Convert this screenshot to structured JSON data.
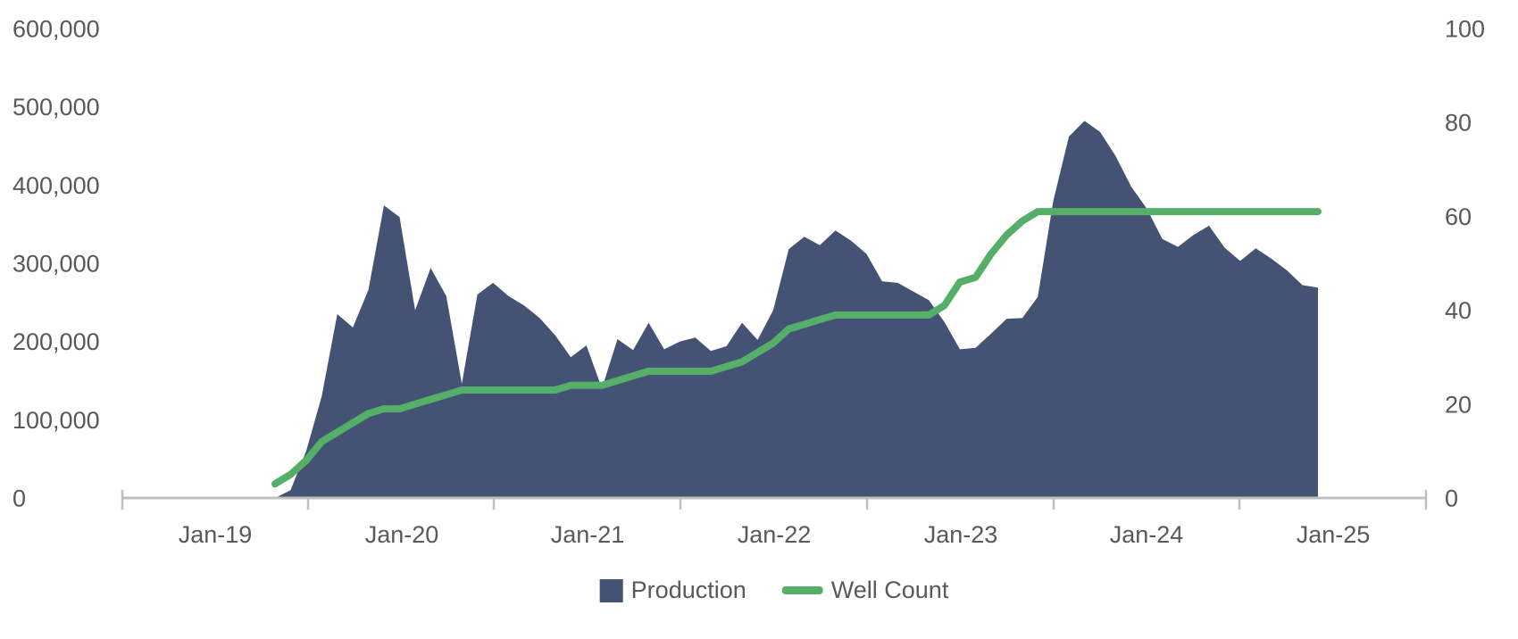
{
  "chart_data": {
    "type": "combo",
    "title": "",
    "grid": "off",
    "legend_position": "bottom",
    "categories": [
      "May-19",
      "Jun-19",
      "Jul-19",
      "Aug-19",
      "Sep-19",
      "Oct-19",
      "Nov-19",
      "Dec-19",
      "Jan-20",
      "Feb-20",
      "Mar-20",
      "Apr-20",
      "May-20",
      "Jun-20",
      "Jul-20",
      "Aug-20",
      "Sep-20",
      "Oct-20",
      "Nov-20",
      "Dec-20",
      "Jan-21",
      "Feb-21",
      "Mar-21",
      "Apr-21",
      "May-21",
      "Jun-21",
      "Jul-21",
      "Aug-21",
      "Sep-21",
      "Oct-21",
      "Nov-21",
      "Dec-21",
      "Jan-22",
      "Feb-22",
      "Mar-22",
      "Apr-22",
      "May-22",
      "Jun-22",
      "Jul-22",
      "Aug-22",
      "Sep-22",
      "Oct-22",
      "Nov-22",
      "Dec-22",
      "Jan-23",
      "Feb-23",
      "Mar-23",
      "Apr-23",
      "May-23",
      "Jun-23",
      "Jul-23",
      "Aug-23",
      "Sep-23",
      "Oct-23",
      "Nov-23",
      "Dec-23",
      "Jan-24",
      "Feb-24",
      "Mar-24",
      "Apr-24",
      "May-24",
      "Jun-24",
      "Jul-24",
      "Aug-24",
      "Sep-24",
      "Oct-24",
      "Nov-24",
      "Dec-24"
    ],
    "series": [
      {
        "name": "Production",
        "type": "area",
        "axis": "left",
        "color": "#445274",
        "values": [
          0,
          10000,
          60000,
          130000,
          235000,
          218000,
          266000,
          374000,
          359000,
          240000,
          294000,
          258000,
          146000,
          260000,
          275000,
          258000,
          246000,
          230000,
          208000,
          180000,
          195000,
          140000,
          203000,
          189000,
          224000,
          190000,
          200000,
          205000,
          188000,
          194000,
          224000,
          202000,
          240000,
          318000,
          334000,
          323000,
          342000,
          329000,
          312000,
          277000,
          275000,
          264000,
          253000,
          225000,
          190000,
          192000,
          210000,
          229000,
          230000,
          257000,
          380000,
          462000,
          482000,
          468000,
          437000,
          398000,
          370000,
          331000,
          321000,
          336000,
          348000,
          320000,
          303000,
          319000,
          306000,
          291000,
          272000,
          269000
        ]
      },
      {
        "name": "Well Count",
        "type": "line",
        "axis": "right",
        "color": "#55AF68",
        "values": [
          3,
          5,
          8,
          12,
          14,
          16,
          18,
          19,
          19,
          20,
          21,
          22,
          23,
          23,
          23,
          23,
          23,
          23,
          23,
          24,
          24,
          24,
          25,
          26,
          27,
          27,
          27,
          27,
          27,
          28,
          29,
          31,
          33,
          36,
          37,
          38,
          39,
          39,
          39,
          39,
          39,
          39,
          39,
          41,
          46,
          47,
          52,
          56,
          59,
          61,
          61,
          61,
          61,
          61,
          61,
          61,
          61,
          61,
          61,
          61,
          61,
          61,
          61,
          61,
          61,
          61,
          61,
          61
        ]
      }
    ],
    "x_axis": {
      "labels": [
        "Jan-19",
        "Jan-20",
        "Jan-21",
        "Jan-22",
        "Jan-23",
        "Jan-24",
        "Jan-25"
      ]
    },
    "y_axis_left": {
      "min": 0,
      "max": 600000,
      "tick_values": [
        0,
        100000,
        200000,
        300000,
        400000,
        500000,
        600000
      ],
      "tick_labels": [
        "0",
        "100,000",
        "200,000",
        "300,000",
        "400,000",
        "500,000",
        "600,000"
      ]
    },
    "y_axis_right": {
      "min": 0,
      "max": 100,
      "tick_values": [
        0,
        20,
        40,
        60,
        80,
        100
      ],
      "tick_labels": [
        "0",
        "20",
        "40",
        "60",
        "80",
        "100"
      ]
    },
    "styles": {
      "axis_line_color": "#BFBFBF",
      "label_color": "#595959",
      "background": "#FFFFFF"
    }
  }
}
